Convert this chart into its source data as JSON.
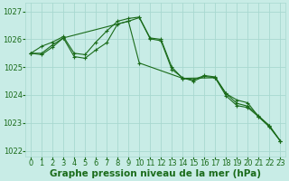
{
  "title": "Graphe pression niveau de la mer (hPa)",
  "bg_color": "#c8ece6",
  "grid_color": "#a8d8d0",
  "line_color": "#1a6b1a",
  "xlim": [
    -0.5,
    23.5
  ],
  "ylim": [
    1021.8,
    1027.3
  ],
  "yticks": [
    1022,
    1023,
    1024,
    1025,
    1026,
    1027
  ],
  "xticks": [
    0,
    1,
    2,
    3,
    4,
    5,
    6,
    7,
    8,
    9,
    10,
    11,
    12,
    13,
    14,
    15,
    16,
    17,
    18,
    19,
    20,
    21,
    22,
    23
  ],
  "series1_x": [
    0,
    1,
    2,
    3,
    4,
    5,
    6,
    7,
    8,
    9,
    10,
    11,
    12,
    13,
    14,
    15,
    16,
    17,
    18,
    19,
    20,
    21,
    22,
    23
  ],
  "series1_y": [
    1025.5,
    1025.75,
    1025.9,
    1026.1,
    1025.5,
    1025.45,
    1025.9,
    1026.3,
    1026.65,
    1026.75,
    1026.8,
    1026.05,
    1026.0,
    1025.0,
    1024.6,
    1024.55,
    1024.7,
    1024.65,
    1024.05,
    1023.7,
    1023.6,
    1023.25,
    1022.9,
    1022.35
  ],
  "series2_x": [
    0,
    1,
    2,
    3,
    4,
    5,
    6,
    7,
    8,
    9,
    10,
    11,
    12,
    13,
    14,
    15,
    16,
    17,
    18,
    19,
    20,
    21,
    22,
    23
  ],
  "series2_y": [
    1025.5,
    1025.5,
    1025.8,
    1026.05,
    1025.38,
    1025.32,
    1025.62,
    1025.88,
    1026.55,
    1026.65,
    1026.78,
    1026.02,
    1025.95,
    1024.92,
    1024.62,
    1024.5,
    1024.67,
    1024.62,
    1023.97,
    1023.62,
    1023.55,
    1023.22,
    1022.85,
    1022.35
  ],
  "series3_x": [
    0,
    1,
    2,
    3,
    9,
    10,
    14,
    17,
    18,
    19,
    20,
    21,
    22,
    23
  ],
  "series3_y": [
    1025.5,
    1025.45,
    1025.72,
    1026.05,
    1026.65,
    1025.15,
    1024.6,
    1024.62,
    1024.05,
    1023.82,
    1023.72,
    1023.22,
    1022.88,
    1022.35
  ],
  "title_fontsize": 7.5,
  "tick_fontsize": 6,
  "ylabel_fontsize": 7
}
